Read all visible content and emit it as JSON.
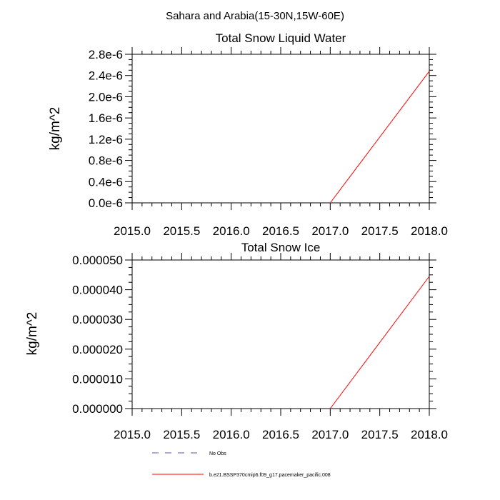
{
  "figure": {
    "title": "Sahara and Arabia(15-30N,15W-60E)"
  },
  "chart_data": [
    {
      "type": "line",
      "title": "Total Snow Liquid Water",
      "xlabel": "",
      "ylabel": "kg/m^2",
      "xlim": [
        2015.0,
        2018.0
      ],
      "ylim": [
        0.0,
        2.8e-06
      ],
      "xticks": [
        2015.0,
        2015.5,
        2016.0,
        2016.5,
        2017.0,
        2017.5,
        2018.0
      ],
      "xtick_labels": [
        "2015.0",
        "2015.5",
        "2016.0",
        "2016.5",
        "2017.0",
        "2017.5",
        "2018.0"
      ],
      "yticks": [
        0.0,
        4e-07,
        8e-07,
        1.2e-06,
        1.6e-06,
        2e-06,
        2.4e-06,
        2.8e-06
      ],
      "ytick_labels": [
        "0.0e-6",
        "0.4e-6",
        "0.8e-6",
        "1.2e-6",
        "1.6e-6",
        "2.0e-6",
        "2.4e-6",
        "2.8e-6"
      ],
      "series": [
        {
          "name": "b.e21.BSSP370cmip6.f09_g17.pacemaker_pacific.008",
          "color": "#ff0000",
          "x": [
            2017.0,
            2018.0
          ],
          "y": [
            0.0,
            2.48e-06
          ]
        }
      ]
    },
    {
      "type": "line",
      "title": "Total Snow Ice",
      "xlabel": "",
      "ylabel": "kg/m^2",
      "xlim": [
        2015.0,
        2018.0
      ],
      "ylim": [
        0.0,
        5e-05
      ],
      "xticks": [
        2015.0,
        2015.5,
        2016.0,
        2016.5,
        2017.0,
        2017.5,
        2018.0
      ],
      "xtick_labels": [
        "2015.0",
        "2015.5",
        "2016.0",
        "2016.5",
        "2017.0",
        "2017.5",
        "2018.0"
      ],
      "yticks": [
        0.0,
        1e-05,
        2e-05,
        3e-05,
        4e-05,
        5e-05
      ],
      "ytick_labels": [
        "0.000000",
        "0.000010",
        "0.000020",
        "0.000030",
        "0.000040",
        "0.000050"
      ],
      "series": [
        {
          "name": "b.e21.BSSP370cmip6.f09_g17.pacemaker_pacific.008",
          "color": "#ff0000",
          "x": [
            2017.0,
            2018.0
          ],
          "y": [
            0.0,
            4.45e-05
          ]
        }
      ]
    }
  ],
  "legend": {
    "items": [
      {
        "label": "No Obs",
        "color": "#5555aa",
        "style": "dashed"
      },
      {
        "label": "b.e21.BSSP370cmip6.f09_g17.pacemaker_pacific.008",
        "color": "#ff0000",
        "style": "solid"
      }
    ]
  }
}
